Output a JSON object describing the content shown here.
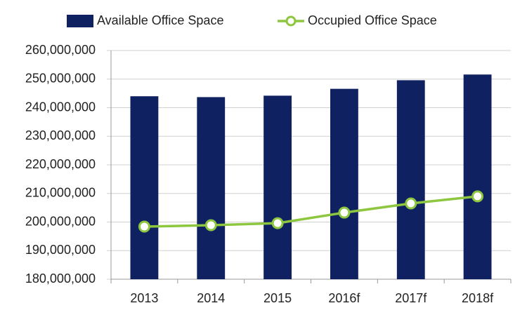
{
  "chart_data": {
    "type": "bar",
    "categories": [
      "2013",
      "2014",
      "2015",
      "2016f",
      "2017f",
      "2018f"
    ],
    "series": [
      {
        "name": "Available Office Space",
        "type": "bar",
        "color": "#0f2161",
        "values": [
          244000000,
          243700000,
          244200000,
          246600000,
          249600000,
          251600000
        ]
      },
      {
        "name": "Occupied Office Space",
        "type": "line",
        "color": "#8dc63f",
        "values": [
          198400000,
          198900000,
          199600000,
          203300000,
          206500000,
          209000000
        ]
      }
    ],
    "ylim": [
      180000000,
      260000000
    ],
    "yticks": [
      {
        "value": 180000000,
        "label": "180,000,000"
      },
      {
        "value": 190000000,
        "label": "190,000,000"
      },
      {
        "value": 200000000,
        "label": "200,000,000"
      },
      {
        "value": 210000000,
        "label": "210,000,000"
      },
      {
        "value": 220000000,
        "label": "220,000,000"
      },
      {
        "value": 230000000,
        "label": "230,000,000"
      },
      {
        "value": 240000000,
        "label": "240,000,000"
      },
      {
        "value": 250000000,
        "label": "250,000,000"
      },
      {
        "value": 260000000,
        "label": "260,000,000"
      }
    ],
    "grid": true,
    "legend": "top"
  }
}
